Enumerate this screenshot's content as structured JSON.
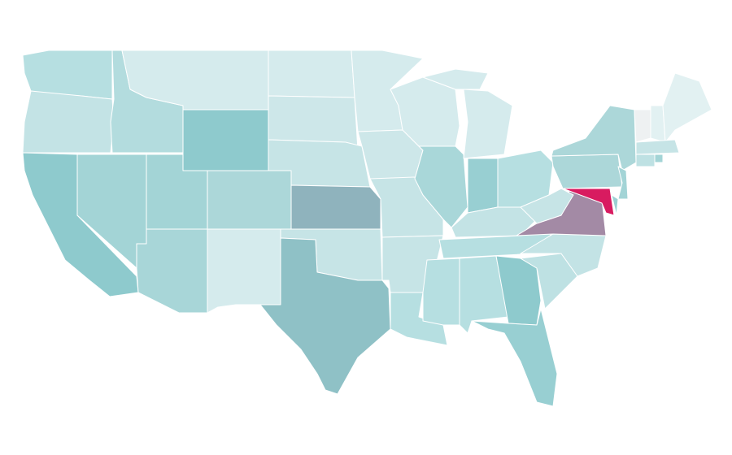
{
  "map": {
    "background": "#ffffff",
    "border_color": "#ffffff",
    "regions": [
      {
        "color": "#b6dfe1"
      },
      {
        "color": "#c3e3e5"
      },
      {
        "color": "#8ecacd"
      },
      {
        "color": "#a3d4d6"
      },
      {
        "color": "#b3dcde"
      },
      {
        "color": "#d5ebed"
      },
      {
        "color": "#8ecacd"
      },
      {
        "color": "#a3d4d6"
      },
      {
        "color": "#a8d6d8"
      },
      {
        "color": "#acd7d9"
      },
      {
        "color": "#d5ebed"
      },
      {
        "color": "#d5ebed"
      },
      {
        "color": "#cde7e9"
      },
      {
        "color": "#c6e4e6"
      },
      {
        "color": "#8fb3bd"
      },
      {
        "color": "#c6e4e6"
      },
      {
        "color": "#8fc1c6"
      },
      {
        "color": "#d5ebed"
      },
      {
        "color": "#cde7e9"
      },
      {
        "color": "#c6e4e6"
      },
      {
        "color": "#c6e4e6"
      },
      {
        "color": "#b6dfe1"
      },
      {
        "color": "#d5ebed"
      },
      {
        "color": "#a9d7d9"
      },
      {
        "color": "#d5ebed"
      },
      {
        "color": "#98cfd2"
      },
      {
        "color": "#b6dfe1"
      },
      {
        "color": "#c3e3e5"
      },
      {
        "color": "#b6dfe1"
      },
      {
        "color": "#b6dfe1"
      },
      {
        "color": "#b6dfe1"
      },
      {
        "color": "#8ecacd"
      },
      {
        "color": "#98cfd2"
      },
      {
        "color": "#bee1e3"
      },
      {
        "color": "#c3e3e5"
      },
      {
        "color": "#a38aa5"
      },
      {
        "color": "#c6e4e6"
      },
      {
        "color": "#d81b60"
      },
      {
        "color": "#acd7d9"
      },
      {
        "color": "#acd7d9"
      },
      {
        "color": "#a3d4d6"
      },
      {
        "color": "#9bd0d3"
      },
      {
        "color": "#eef1f2"
      },
      {
        "color": "#e2f1f2"
      },
      {
        "color": "#e2f1f2"
      },
      {
        "color": "#c6e4e6"
      },
      {
        "color": "#bee1e3"
      },
      {
        "color": "#a3d4d6"
      },
      {
        "color": "#d5ebed"
      }
    ]
  }
}
